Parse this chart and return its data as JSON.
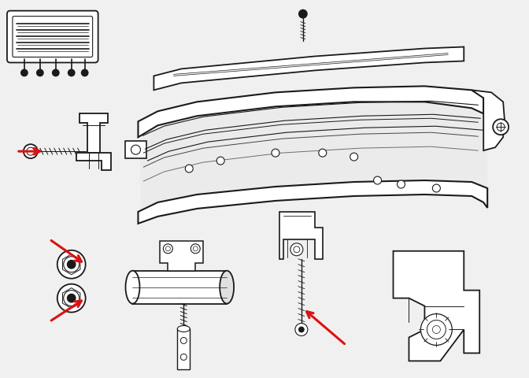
{
  "background_color": "#f0f0f0",
  "line_color": "#1a1a1a",
  "arrow_color": "#dd1111",
  "fig_width": 6.72,
  "fig_height": 4.81,
  "dpi": 100
}
